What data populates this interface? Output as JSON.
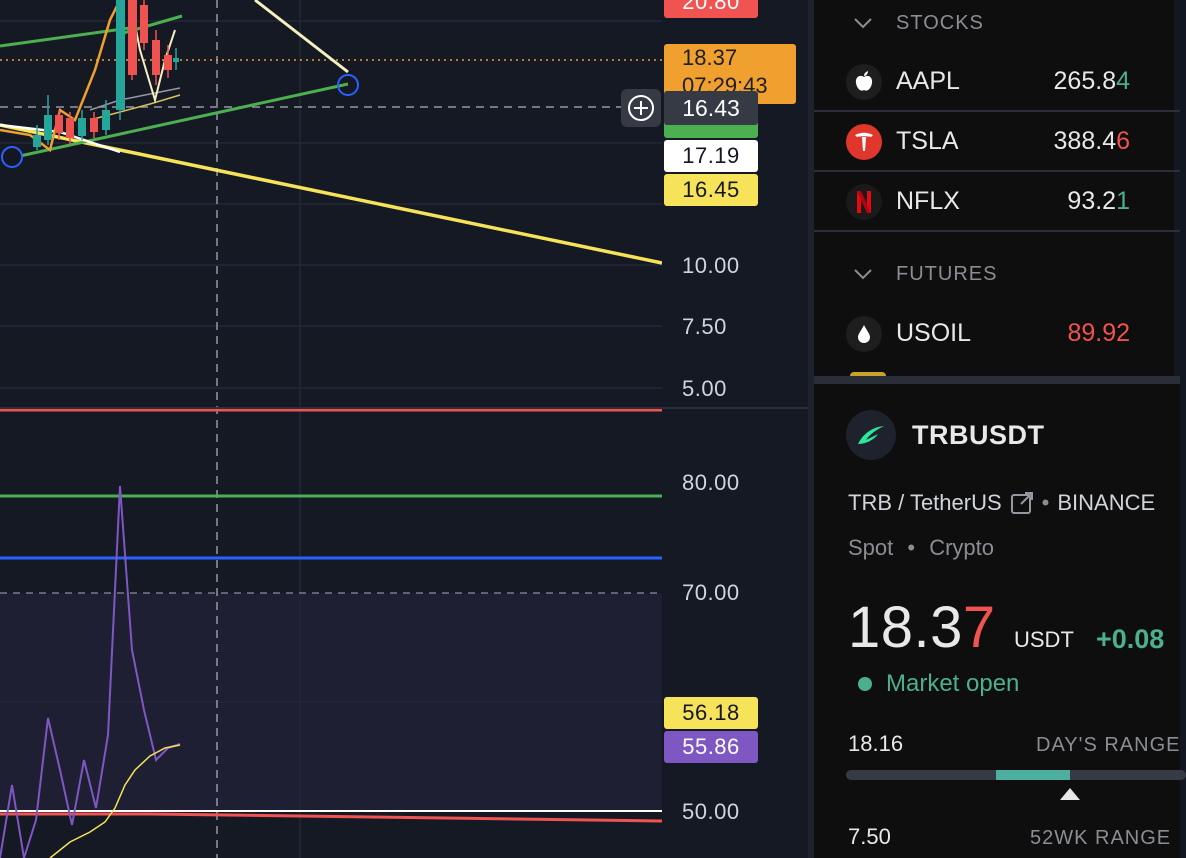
{
  "price_axis": {
    "main_ticks": [
      "10.00",
      "7.50",
      "5.00"
    ],
    "rsi_ticks": [
      "80.00",
      "70.00",
      "50.00"
    ],
    "partial_top_label": "20.80",
    "current_price": {
      "price": "18.37",
      "countdown": "07:29:43"
    },
    "crosshair_price": "16.43",
    "labels": [
      {
        "value": "17.19",
        "bg": "#ffffff",
        "fg": "#131722"
      },
      {
        "value": "16.45",
        "bg": "#f7e35a",
        "fg": "#131722"
      },
      {
        "value": "56.18",
        "bg": "#f7e35a",
        "fg": "#131722"
      },
      {
        "value": "55.86",
        "bg": "#7e57c2",
        "fg": "#ffffff"
      }
    ]
  },
  "watchlist": {
    "sections": [
      {
        "title": "STOCKS"
      },
      {
        "title": "FUTURES"
      }
    ],
    "rows": [
      {
        "symbol": "AAPL",
        "price_main": "265.8",
        "price_last": "4",
        "last_color": "#4caf8f",
        "icon": "apple-icon"
      },
      {
        "symbol": "TSLA",
        "price_main": "388.4",
        "price_last": "6",
        "last_color": "#f05350",
        "icon": "tesla-icon"
      },
      {
        "symbol": "NFLX",
        "price_main": "93.2",
        "price_last": "1",
        "last_color": "#4caf8f",
        "icon": "netflix-icon"
      },
      {
        "symbol": "USOIL",
        "price_main": "89.92",
        "price_last": "",
        "last_color": "#f05350",
        "icon": "oil-drop-icon"
      }
    ]
  },
  "details": {
    "symbol": "TRBUSDT",
    "pair": "TRB / TetherUS",
    "separator": "•",
    "exchange": "BINANCE",
    "market_type": "Spot",
    "asset_class": "Crypto",
    "price_main": "18.3",
    "price_last": "7",
    "currency": "USDT",
    "change": "+0.08",
    "status": "Market open",
    "day_low": "18.16",
    "day_range_label": "DAY'S RANGE",
    "day_range_position": 0.62,
    "wk52_low": "7.50",
    "wk52_label": "52WK RANGE"
  },
  "colors": {
    "up": "#4caf8f",
    "down": "#f05350",
    "current_price_bg": "#f0a02f"
  }
}
